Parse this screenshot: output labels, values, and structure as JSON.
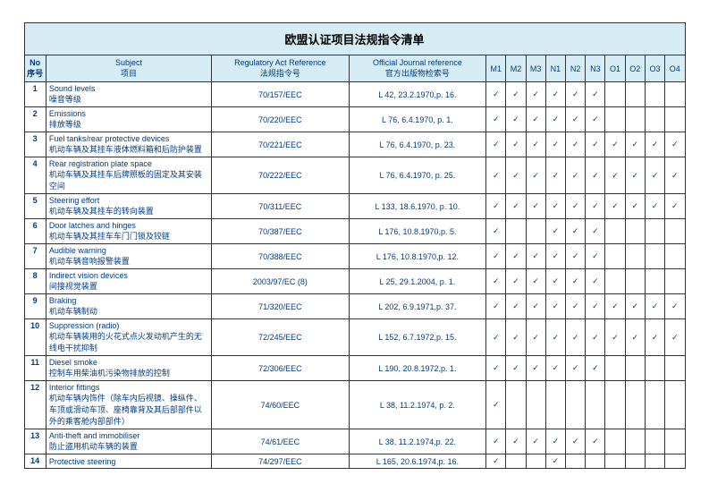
{
  "title": "欧盟认证项目法规指令清单",
  "headers": {
    "no_en": "No",
    "no_zh": "序号",
    "subject_en": "Subject",
    "subject_zh": "项目",
    "ref_en": "Regulatory Act Reference",
    "ref_zh": "法规指令号",
    "oj_en": "Official Journal reference",
    "oj_zh": "官方出版物检索号",
    "m1": "M1",
    "m2": "M2",
    "m3": "M3",
    "n1": "N1",
    "n2": "N2",
    "n3": "N3",
    "o1": "O1",
    "o2": "O2",
    "o3": "O3",
    "o4": "O4"
  },
  "rows": [
    {
      "no": "1",
      "en": "Sound levels",
      "zh": "噪音等级",
      "ref": "70/157/EEC",
      "oj": "L 42, 23.2.1970,p. 16.",
      "chk": [
        1,
        1,
        1,
        1,
        1,
        1,
        0,
        0,
        0,
        0
      ]
    },
    {
      "no": "2",
      "en": "Emissions",
      "zh": "排放等级",
      "ref": "70/220/EEC",
      "oj": "L 76, 6.4.1970, p. 1.",
      "chk": [
        1,
        1,
        1,
        1,
        1,
        1,
        0,
        0,
        0,
        0
      ]
    },
    {
      "no": "3",
      "en": "Fuel tanks/rear protective devices",
      "zh": "机动车辆及其挂车液体燃料箱和后防护装置",
      "ref": "70/221/EEC",
      "oj": "L 76, 6.4.1970, p. 23.",
      "chk": [
        1,
        1,
        1,
        1,
        1,
        1,
        1,
        1,
        1,
        1
      ]
    },
    {
      "no": "4",
      "en": "Rear registration plate space",
      "zh": "机动车辆及其挂车后牌照板的固定及其安装空间",
      "ref": "70/222/EEC",
      "oj": "L 76, 6.4.1970, p. 25.",
      "chk": [
        1,
        1,
        1,
        1,
        1,
        1,
        1,
        1,
        1,
        1
      ]
    },
    {
      "no": "5",
      "en": "Steering effort",
      "zh": "机动车辆及其挂车的转向装置",
      "ref": "70/311/EEC",
      "oj": "L 133, 18.6.1970, p. 10.",
      "chk": [
        1,
        1,
        1,
        1,
        1,
        1,
        1,
        1,
        1,
        1
      ]
    },
    {
      "no": "6",
      "en": "Door latches and hinges",
      "zh": "机动车辆及其挂车车门门锁及铰链",
      "ref": "70/387/EEC",
      "oj": "L 176, 10.8.1970,p. 5.",
      "chk": [
        1,
        0,
        0,
        1,
        1,
        1,
        0,
        0,
        0,
        0
      ]
    },
    {
      "no": "7",
      "en": "Audible warning",
      "zh": "机动车辆音响报警装置",
      "ref": "70/388/EEC",
      "oj": "L 176, 10.8.1970,p. 12.",
      "chk": [
        1,
        1,
        1,
        1,
        1,
        1,
        0,
        0,
        0,
        0
      ]
    },
    {
      "no": "8",
      "en": "Indirect vision devices",
      "zh": "间接视觉装置",
      "ref": "2003/97/EC (8)",
      "oj": "L 25, 29.1.2004, p. 1.",
      "chk": [
        1,
        1,
        1,
        1,
        1,
        1,
        0,
        0,
        0,
        0
      ]
    },
    {
      "no": "9",
      "en": "Braking",
      "zh": "机动车辆制动",
      "ref": "71/320/EEC",
      "oj": "L 202, 6.9.1971,p. 37.",
      "chk": [
        1,
        1,
        1,
        1,
        1,
        1,
        1,
        1,
        1,
        1
      ]
    },
    {
      "no": "10",
      "en": "Suppression (radio)",
      "zh": "机动车辆装用的火花式点火发动机产生的无线电干扰抑制",
      "ref": "72/245/EEC",
      "oj": "L 152, 6.7.1972,p. 15.",
      "chk": [
        1,
        1,
        1,
        1,
        1,
        1,
        1,
        1,
        1,
        1
      ]
    },
    {
      "no": "11",
      "en": "Diesel smoke",
      "zh": "控制车用柴油机污染物排放的控制",
      "ref": "72/306/EEC",
      "oj": "L 190, 20.8.1972,p. 1.",
      "chk": [
        1,
        1,
        1,
        1,
        1,
        1,
        0,
        0,
        0,
        0
      ]
    },
    {
      "no": "12",
      "en": "Interior fittings",
      "zh": "机动车辆内饰件（除车内后视镜、操纵件、车顶或滑动车顶、座椅靠背及其后部部件以外的乘客舱内部部件）",
      "ref": "74/60/EEC",
      "oj": "L 38, 11.2.1974, p. 2.",
      "chk": [
        1,
        0,
        0,
        0,
        0,
        0,
        0,
        0,
        0,
        0
      ]
    },
    {
      "no": "13",
      "en": "Anti-theft and immobiliser",
      "zh": "防止盗用机动车辆的装置",
      "ref": "74/61/EEC",
      "oj": "L 38, 11.2.1974,p. 22.",
      "chk": [
        1,
        1,
        1,
        1,
        1,
        1,
        0,
        0,
        0,
        0
      ]
    },
    {
      "no": "14",
      "en": "Protective steering",
      "zh": "",
      "ref": "74/297/EEC",
      "oj": "L 165, 20.6.1974,p. 16.",
      "chk": [
        1,
        0,
        0,
        1,
        0,
        0,
        0,
        0,
        0,
        0
      ]
    }
  ]
}
